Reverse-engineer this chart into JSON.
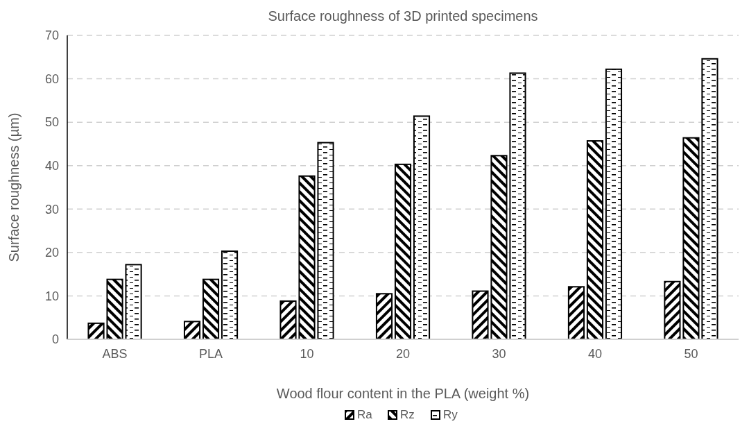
{
  "chart_data": {
    "type": "bar",
    "title": "Surface roughness of 3D printed specimens",
    "xlabel": "Wood flour content in the PLA (weight %)",
    "ylabel": "Surface roughness (µm)",
    "categories": [
      "ABS",
      "PLA",
      "10",
      "20",
      "30",
      "40",
      "50"
    ],
    "series": [
      {
        "name": "Ra",
        "color": "#000000",
        "values": [
          3.7,
          4.1,
          8.8,
          10.5,
          11.1,
          12.1,
          13.3
        ]
      },
      {
        "name": "Rz",
        "color": "#000000",
        "values": [
          13.8,
          13.8,
          37.6,
          40.3,
          42.3,
          45.7,
          46.4
        ]
      },
      {
        "name": "Ry",
        "color": "#000000",
        "values": [
          17.2,
          20.3,
          45.3,
          51.4,
          61.3,
          62.2,
          64.6
        ]
      }
    ],
    "ylim": [
      0,
      70
    ],
    "yticks": [
      0,
      10,
      20,
      30,
      40,
      50,
      60,
      70
    ],
    "grid": "y",
    "legend": "bottom"
  }
}
